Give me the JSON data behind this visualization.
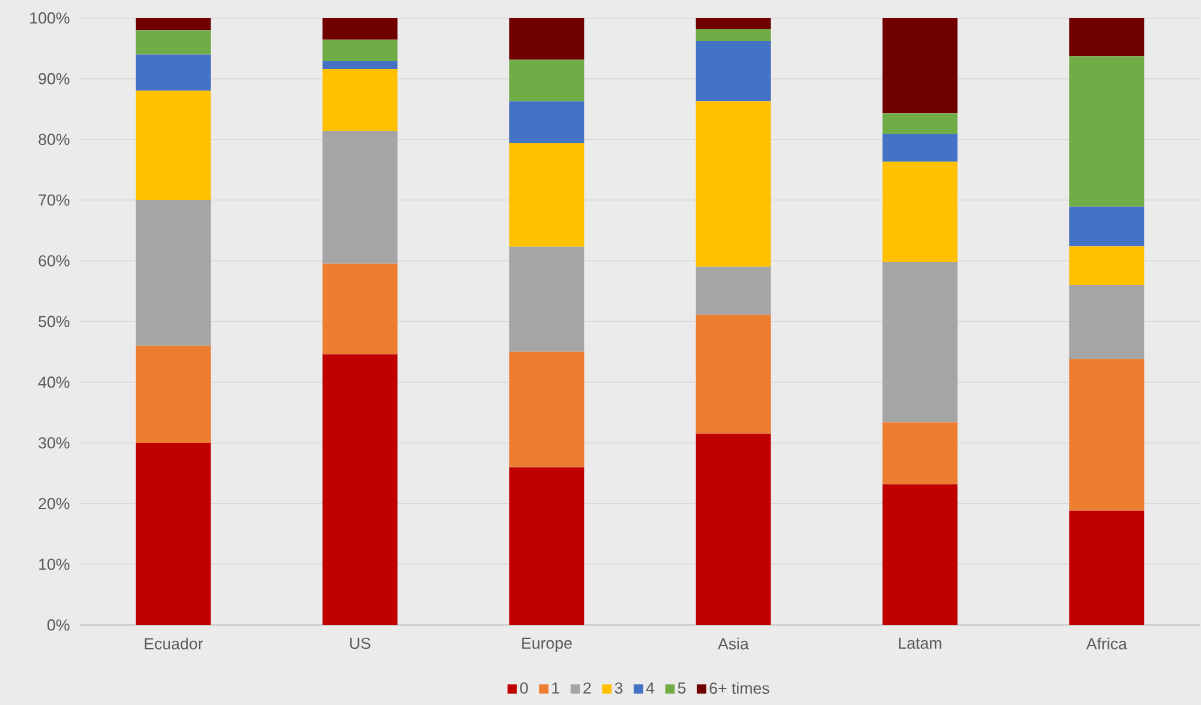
{
  "chart_data": {
    "type": "bar",
    "stacked": true,
    "categories": [
      "Ecuador",
      "US",
      "Europe",
      "Asia",
      "Latam",
      "Africa"
    ],
    "series": [
      {
        "name": "0",
        "color": "#c00000",
        "values": [
          30.0,
          44.6,
          26.0,
          31.5,
          23.2,
          18.8
        ]
      },
      {
        "name": "1",
        "color": "#ed7d31",
        "values": [
          16.0,
          14.9,
          19.0,
          19.6,
          10.2,
          25.0
        ]
      },
      {
        "name": "2",
        "color": "#a5a5a5",
        "values": [
          24.0,
          21.9,
          17.3,
          7.9,
          26.4,
          12.2
        ]
      },
      {
        "name": "3",
        "color": "#ffc000",
        "values": [
          18.0,
          10.2,
          17.1,
          27.3,
          16.5,
          6.4
        ]
      },
      {
        "name": "4",
        "color": "#4472c4",
        "values": [
          6.0,
          1.3,
          6.9,
          9.9,
          4.6,
          6.5
        ]
      },
      {
        "name": "5",
        "color": "#70ad47",
        "values": [
          4.0,
          3.5,
          6.8,
          2.0,
          3.4,
          24.8
        ]
      },
      {
        "name": "6+ times",
        "color": "#700000",
        "values": [
          2.0,
          3.6,
          6.9,
          1.8,
          15.7,
          6.3
        ]
      }
    ],
    "ylim": [
      0,
      100
    ],
    "yticks": [
      {
        "value": 0,
        "label": "0%"
      },
      {
        "value": 10,
        "label": "10%"
      },
      {
        "value": 20,
        "label": "20%"
      },
      {
        "value": 30,
        "label": "30%"
      },
      {
        "value": 40,
        "label": "40%"
      },
      {
        "value": 50,
        "label": "50%"
      },
      {
        "value": 60,
        "label": "60%"
      },
      {
        "value": 70,
        "label": "70%"
      },
      {
        "value": 80,
        "label": "80%"
      },
      {
        "value": 90,
        "label": "90%"
      },
      {
        "value": 100,
        "label": "100%"
      }
    ],
    "grid": "y",
    "legend": "bottom"
  }
}
